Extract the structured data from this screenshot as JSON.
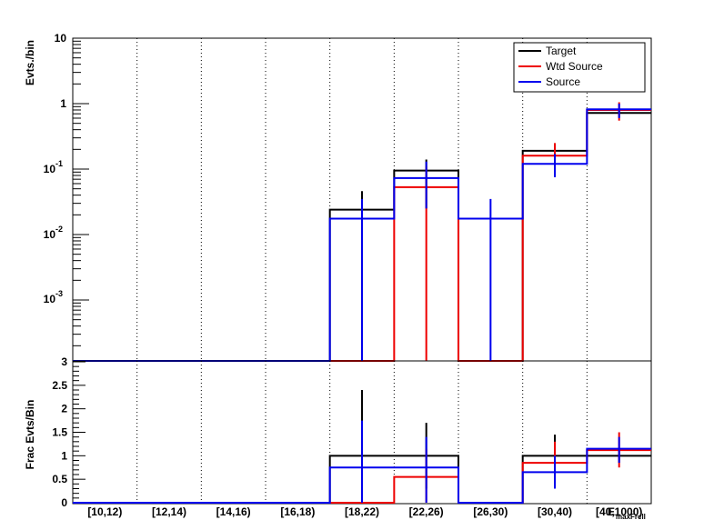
{
  "chart_data": [
    {
      "type": "histogram",
      "panel": "top",
      "ylabel": "Evts./bin",
      "yscale": "log",
      "ylim": [
        0.0001,
        10
      ],
      "ytick_labels": {
        "t10": "10",
        "t1": "1",
        "t01_base": "10",
        "t01_exp": "-1",
        "t001_base": "10",
        "t001_exp": "-2",
        "t0001_base": "10",
        "t0001_exp": "-3"
      },
      "legend_position": "top-right",
      "legend": {
        "target": "Target",
        "wtd": "Wtd Source",
        "source": "Source"
      },
      "colors": {
        "target": "#000000",
        "wtd": "#ee0000",
        "source": "#0000ee"
      },
      "series": [
        {
          "key": "target",
          "name": "Target",
          "values": [
            0,
            0,
            0,
            0,
            0.024,
            0.095,
            0,
            0.19,
            0.72
          ],
          "errors": [
            [
              0,
              0
            ],
            [
              0,
              0
            ],
            [
              0,
              0
            ],
            [
              0,
              0
            ],
            [
              0.0001,
              0.046
            ],
            [
              0.025,
              0.14
            ],
            [
              0,
              0
            ],
            [
              0.14,
              0.24
            ],
            [
              0.62,
              0.82
            ]
          ]
        },
        {
          "key": "wtd",
          "name": "Wtd Source",
          "values": [
            0,
            0,
            0,
            0,
            0,
            0.053,
            0,
            0.16,
            0.8
          ],
          "errors": [
            [
              0,
              0
            ],
            [
              0,
              0
            ],
            [
              0,
              0
            ],
            [
              0,
              0
            ],
            [
              0,
              0
            ],
            [
              0.0001,
              0.11
            ],
            [
              0,
              0
            ],
            [
              0.1,
              0.25
            ],
            [
              0.55,
              1.05
            ]
          ]
        },
        {
          "key": "source",
          "name": "Source",
          "values": [
            0,
            0,
            0,
            0,
            0.0175,
            0.073,
            0.0175,
            0.12,
            0.82
          ],
          "errors": [
            [
              0,
              0
            ],
            [
              0,
              0
            ],
            [
              0,
              0
            ],
            [
              0,
              0
            ],
            [
              0.0001,
              0.035
            ],
            [
              0.025,
              0.13
            ],
            [
              0.0001,
              0.035
            ],
            [
              0.075,
              0.17
            ],
            [
              0.6,
              1.0
            ]
          ]
        }
      ]
    },
    {
      "type": "histogram",
      "panel": "bottom",
      "ylabel": "Frac Evts/Bin",
      "ylim": [
        0,
        3
      ],
      "ytick_labels": [
        "0",
        "0.5",
        "1",
        "1.5",
        "2",
        "2.5",
        "3"
      ],
      "xlabel": "E",
      "xlabel_sub": "maxFrcll",
      "categories": [
        "[10,12)",
        "[12,14)",
        "[14,16)",
        "[16,18)",
        "[18,22)",
        "[22,26)",
        "[26,30)",
        "[30,40)",
        "[40,1000)"
      ],
      "series": [
        {
          "key": "target",
          "name": "Target",
          "values": [
            0,
            0,
            0,
            0,
            1,
            1,
            0,
            1,
            1
          ],
          "errors": [
            [
              0,
              0
            ],
            [
              0,
              0
            ],
            [
              0,
              0
            ],
            [
              0,
              0
            ],
            [
              0,
              2.4
            ],
            [
              0.3,
              1.7
            ],
            [
              0,
              0
            ],
            [
              0.55,
              1.45
            ],
            [
              0.85,
              1.15
            ]
          ]
        },
        {
          "key": "wtd",
          "name": "Wtd Source",
          "values": [
            0,
            0,
            0,
            0,
            0,
            0.55,
            0,
            0.85,
            1.12
          ],
          "errors": [
            [
              0,
              0
            ],
            [
              0,
              0
            ],
            [
              0,
              0
            ],
            [
              0,
              0
            ],
            [
              0,
              0
            ],
            [
              0,
              1.15
            ],
            [
              0,
              0
            ],
            [
              0.4,
              1.3
            ],
            [
              0.75,
              1.5
            ]
          ]
        },
        {
          "key": "source",
          "name": "Source",
          "values": [
            0,
            0,
            0,
            0,
            0.75,
            0.75,
            0,
            0.65,
            1.15
          ],
          "errors": [
            [
              0,
              0
            ],
            [
              0,
              0
            ],
            [
              0,
              0
            ],
            [
              0,
              0
            ],
            [
              0,
              1.75
            ],
            [
              0,
              1.4
            ],
            [
              0,
              0
            ],
            [
              0.3,
              1.0
            ],
            [
              0.85,
              1.4
            ]
          ]
        }
      ]
    }
  ]
}
